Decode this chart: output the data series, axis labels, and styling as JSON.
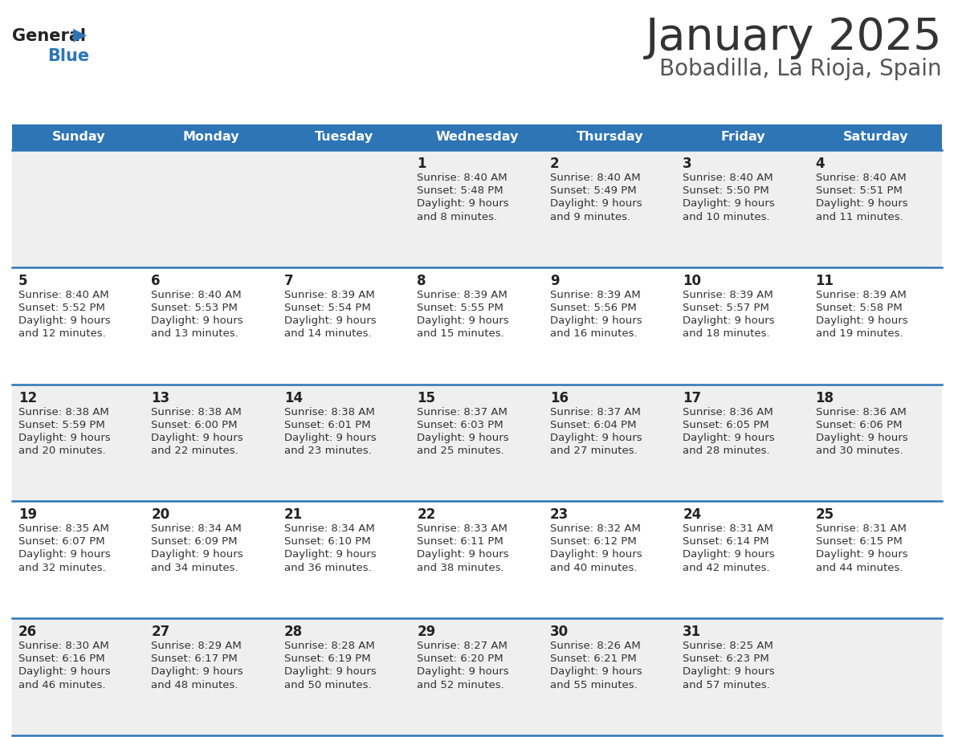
{
  "title": "January 2025",
  "subtitle": "Bobadilla, La Rioja, Spain",
  "days_of_week": [
    "Sunday",
    "Monday",
    "Tuesday",
    "Wednesday",
    "Thursday",
    "Friday",
    "Saturday"
  ],
  "header_bg": "#2E75B6",
  "header_text": "#FFFFFF",
  "row_bg_odd": "#EFEFEF",
  "row_bg_even": "#FFFFFF",
  "cell_text_color": "#333333",
  "day_num_color": "#222222",
  "divider_color": "#2E75B6",
  "title_color": "#333333",
  "subtitle_color": "#555555",
  "logo_general_color": "#222222",
  "logo_blue_color": "#2E75B6",
  "calendar_data": [
    {
      "day": 1,
      "col": 3,
      "row": 0,
      "sunrise": "8:40 AM",
      "sunset": "5:48 PM",
      "daylight": "9 hours\nand 8 minutes."
    },
    {
      "day": 2,
      "col": 4,
      "row": 0,
      "sunrise": "8:40 AM",
      "sunset": "5:49 PM",
      "daylight": "9 hours\nand 9 minutes."
    },
    {
      "day": 3,
      "col": 5,
      "row": 0,
      "sunrise": "8:40 AM",
      "sunset": "5:50 PM",
      "daylight": "9 hours\nand 10 minutes."
    },
    {
      "day": 4,
      "col": 6,
      "row": 0,
      "sunrise": "8:40 AM",
      "sunset": "5:51 PM",
      "daylight": "9 hours\nand 11 minutes."
    },
    {
      "day": 5,
      "col": 0,
      "row": 1,
      "sunrise": "8:40 AM",
      "sunset": "5:52 PM",
      "daylight": "9 hours\nand 12 minutes."
    },
    {
      "day": 6,
      "col": 1,
      "row": 1,
      "sunrise": "8:40 AM",
      "sunset": "5:53 PM",
      "daylight": "9 hours\nand 13 minutes."
    },
    {
      "day": 7,
      "col": 2,
      "row": 1,
      "sunrise": "8:39 AM",
      "sunset": "5:54 PM",
      "daylight": "9 hours\nand 14 minutes."
    },
    {
      "day": 8,
      "col": 3,
      "row": 1,
      "sunrise": "8:39 AM",
      "sunset": "5:55 PM",
      "daylight": "9 hours\nand 15 minutes."
    },
    {
      "day": 9,
      "col": 4,
      "row": 1,
      "sunrise": "8:39 AM",
      "sunset": "5:56 PM",
      "daylight": "9 hours\nand 16 minutes."
    },
    {
      "day": 10,
      "col": 5,
      "row": 1,
      "sunrise": "8:39 AM",
      "sunset": "5:57 PM",
      "daylight": "9 hours\nand 18 minutes."
    },
    {
      "day": 11,
      "col": 6,
      "row": 1,
      "sunrise": "8:39 AM",
      "sunset": "5:58 PM",
      "daylight": "9 hours\nand 19 minutes."
    },
    {
      "day": 12,
      "col": 0,
      "row": 2,
      "sunrise": "8:38 AM",
      "sunset": "5:59 PM",
      "daylight": "9 hours\nand 20 minutes."
    },
    {
      "day": 13,
      "col": 1,
      "row": 2,
      "sunrise": "8:38 AM",
      "sunset": "6:00 PM",
      "daylight": "9 hours\nand 22 minutes."
    },
    {
      "day": 14,
      "col": 2,
      "row": 2,
      "sunrise": "8:38 AM",
      "sunset": "6:01 PM",
      "daylight": "9 hours\nand 23 minutes."
    },
    {
      "day": 15,
      "col": 3,
      "row": 2,
      "sunrise": "8:37 AM",
      "sunset": "6:03 PM",
      "daylight": "9 hours\nand 25 minutes."
    },
    {
      "day": 16,
      "col": 4,
      "row": 2,
      "sunrise": "8:37 AM",
      "sunset": "6:04 PM",
      "daylight": "9 hours\nand 27 minutes."
    },
    {
      "day": 17,
      "col": 5,
      "row": 2,
      "sunrise": "8:36 AM",
      "sunset": "6:05 PM",
      "daylight": "9 hours\nand 28 minutes."
    },
    {
      "day": 18,
      "col": 6,
      "row": 2,
      "sunrise": "8:36 AM",
      "sunset": "6:06 PM",
      "daylight": "9 hours\nand 30 minutes."
    },
    {
      "day": 19,
      "col": 0,
      "row": 3,
      "sunrise": "8:35 AM",
      "sunset": "6:07 PM",
      "daylight": "9 hours\nand 32 minutes."
    },
    {
      "day": 20,
      "col": 1,
      "row": 3,
      "sunrise": "8:34 AM",
      "sunset": "6:09 PM",
      "daylight": "9 hours\nand 34 minutes."
    },
    {
      "day": 21,
      "col": 2,
      "row": 3,
      "sunrise": "8:34 AM",
      "sunset": "6:10 PM",
      "daylight": "9 hours\nand 36 minutes."
    },
    {
      "day": 22,
      "col": 3,
      "row": 3,
      "sunrise": "8:33 AM",
      "sunset": "6:11 PM",
      "daylight": "9 hours\nand 38 minutes."
    },
    {
      "day": 23,
      "col": 4,
      "row": 3,
      "sunrise": "8:32 AM",
      "sunset": "6:12 PM",
      "daylight": "9 hours\nand 40 minutes."
    },
    {
      "day": 24,
      "col": 5,
      "row": 3,
      "sunrise": "8:31 AM",
      "sunset": "6:14 PM",
      "daylight": "9 hours\nand 42 minutes."
    },
    {
      "day": 25,
      "col": 6,
      "row": 3,
      "sunrise": "8:31 AM",
      "sunset": "6:15 PM",
      "daylight": "9 hours\nand 44 minutes."
    },
    {
      "day": 26,
      "col": 0,
      "row": 4,
      "sunrise": "8:30 AM",
      "sunset": "6:16 PM",
      "daylight": "9 hours\nand 46 minutes."
    },
    {
      "day": 27,
      "col": 1,
      "row": 4,
      "sunrise": "8:29 AM",
      "sunset": "6:17 PM",
      "daylight": "9 hours\nand 48 minutes."
    },
    {
      "day": 28,
      "col": 2,
      "row": 4,
      "sunrise": "8:28 AM",
      "sunset": "6:19 PM",
      "daylight": "9 hours\nand 50 minutes."
    },
    {
      "day": 29,
      "col": 3,
      "row": 4,
      "sunrise": "8:27 AM",
      "sunset": "6:20 PM",
      "daylight": "9 hours\nand 52 minutes."
    },
    {
      "day": 30,
      "col": 4,
      "row": 4,
      "sunrise": "8:26 AM",
      "sunset": "6:21 PM",
      "daylight": "9 hours\nand 55 minutes."
    },
    {
      "day": 31,
      "col": 5,
      "row": 4,
      "sunrise": "8:25 AM",
      "sunset": "6:23 PM",
      "daylight": "9 hours\nand 57 minutes."
    }
  ]
}
